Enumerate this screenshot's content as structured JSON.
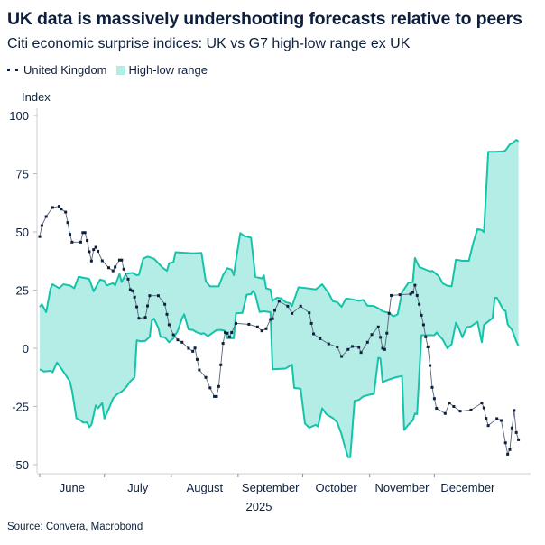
{
  "title": "UK data is massively undershooting forecasts relative to peers",
  "subtitle": "Citi economic surprise indices: UK vs G7 high-low range ex UK",
  "source": "Source: Convera, Macrobond",
  "colors": {
    "uk": "#0d1f3c",
    "range_line": "#14c4aa",
    "range_fill": "#b3ede6",
    "text": "#0d1f3c"
  },
  "chart_data": {
    "type": "line",
    "title": "UK data is massively undershooting forecasts relative to peers",
    "subtitle": "Citi economic surprise indices: UK vs G7 high-low range ex UK",
    "ylabel": "Index",
    "xlabel": "2025",
    "ylim": [
      -50,
      100
    ],
    "yticks": [
      100,
      75,
      50,
      25,
      0,
      -25,
      -50
    ],
    "xticks": [
      "June",
      "July",
      "August",
      "September",
      "October",
      "November",
      "December"
    ],
    "grid": false,
    "legend_placement": "top-left",
    "legend": [
      "United Kingdom",
      "High-low range"
    ],
    "range_high": [
      [
        "2025-06-01",
        17.8
      ],
      [
        "2025-06-02",
        18.9
      ],
      [
        "2025-06-04",
        15.5
      ],
      [
        "2025-06-06",
        25.6
      ],
      [
        "2025-06-07",
        27.5
      ],
      [
        "2025-06-10",
        25.8
      ],
      [
        "2025-06-12",
        27.5
      ],
      [
        "2025-06-15",
        27
      ],
      [
        "2025-06-17",
        25.8
      ],
      [
        "2025-06-19",
        30.7
      ],
      [
        "2025-06-23",
        30
      ],
      [
        "2025-06-24",
        29.7
      ],
      [
        "2025-06-26",
        24.5
      ],
      [
        "2025-06-29",
        29.5
      ],
      [
        "2025-07-01",
        29
      ],
      [
        "2025-07-02",
        27
      ],
      [
        "2025-07-05",
        28
      ],
      [
        "2025-07-06",
        27
      ],
      [
        "2025-07-08",
        32
      ],
      [
        "2025-07-09",
        28.4
      ],
      [
        "2025-07-11",
        32
      ],
      [
        "2025-07-14",
        32.4
      ],
      [
        "2025-07-16",
        31.4
      ],
      [
        "2025-07-17",
        31.6
      ],
      [
        "2025-07-19",
        38.5
      ],
      [
        "2025-07-21",
        39.4
      ],
      [
        "2025-07-24",
        38.5
      ],
      [
        "2025-07-28",
        34.6
      ],
      [
        "2025-07-30",
        33.3
      ],
      [
        "2025-07-31",
        36.5
      ],
      [
        "2025-08-02",
        37
      ],
      [
        "2025-08-03",
        41.3
      ],
      [
        "2025-08-11",
        40.8
      ],
      [
        "2025-08-15",
        41
      ],
      [
        "2025-08-17",
        28.8
      ],
      [
        "2025-08-19",
        26.6
      ],
      [
        "2025-08-23",
        26.6
      ],
      [
        "2025-08-25",
        31.4
      ],
      [
        "2025-08-27",
        34.4
      ],
      [
        "2025-08-29",
        33.8
      ],
      [
        "2025-08-30",
        31.4
      ],
      [
        "2025-08-31",
        37.8
      ],
      [
        "2025-09-02",
        49.5
      ],
      [
        "2025-09-04",
        48.2
      ],
      [
        "2025-09-07",
        47.5
      ],
      [
        "2025-09-09",
        30.7
      ],
      [
        "2025-09-12",
        30
      ],
      [
        "2025-09-13",
        31.3
      ],
      [
        "2025-09-14",
        25.8
      ],
      [
        "2025-09-16",
        25.2
      ],
      [
        "2025-09-17",
        20.4
      ],
      [
        "2025-09-19",
        21.7
      ],
      [
        "2025-09-21",
        21.4
      ],
      [
        "2025-09-23",
        19.8
      ],
      [
        "2025-09-25",
        19.4
      ],
      [
        "2025-09-26",
        18.1
      ],
      [
        "2025-09-29",
        26.2
      ],
      [
        "2025-10-03",
        25.8
      ],
      [
        "2025-10-07",
        25.3
      ],
      [
        "2025-10-10",
        27.5
      ],
      [
        "2025-10-13",
        23.6
      ],
      [
        "2025-10-15",
        20.2
      ],
      [
        "2025-10-17",
        19.8
      ],
      [
        "2025-10-19",
        17.8
      ],
      [
        "2025-10-21",
        21.4
      ],
      [
        "2025-10-24",
        21
      ],
      [
        "2025-10-27",
        20.4
      ],
      [
        "2025-10-29",
        20.8
      ],
      [
        "2025-10-31",
        18.3
      ],
      [
        "2025-11-03",
        18.1
      ],
      [
        "2025-11-05",
        17.2
      ],
      [
        "2025-11-07",
        15.9
      ],
      [
        "2025-11-10",
        15.2
      ],
      [
        "2025-11-12",
        13.7
      ],
      [
        "2025-11-14",
        14.6
      ],
      [
        "2025-11-16",
        24
      ],
      [
        "2025-11-19",
        28.2
      ],
      [
        "2025-11-21",
        28.4
      ],
      [
        "2025-11-22",
        38.8
      ],
      [
        "2025-11-24",
        34.9
      ],
      [
        "2025-11-26",
        34.2
      ],
      [
        "2025-11-29",
        33
      ],
      [
        "2025-11-30",
        33.3
      ],
      [
        "2025-12-02",
        31.8
      ],
      [
        "2025-12-03",
        31
      ],
      [
        "2025-12-05",
        27.8
      ],
      [
        "2025-12-07",
        26.9
      ],
      [
        "2025-12-09",
        26.6
      ],
      [
        "2025-12-11",
        38.1
      ],
      [
        "2025-12-14",
        37.6
      ],
      [
        "2025-12-17",
        37.6
      ],
      [
        "2025-12-19",
        45.2
      ],
      [
        "2025-12-21",
        51.2
      ],
      [
        "2025-12-23",
        50.8
      ],
      [
        "2025-12-24",
        49.9
      ],
      [
        "2025-12-26",
        84.4
      ],
      [
        "2025-12-29",
        84.4
      ],
      [
        "2026-01-02",
        84.6
      ],
      [
        "2026-01-03",
        85
      ],
      [
        "2026-01-05",
        87.6
      ],
      [
        "2026-01-06",
        88
      ],
      [
        "2026-01-08",
        89.5
      ],
      [
        "2026-01-09",
        88.9
      ]
    ],
    "range_low": [
      [
        "2025-06-01",
        -9
      ],
      [
        "2025-06-03",
        -10
      ],
      [
        "2025-06-06",
        -9.7
      ],
      [
        "2025-06-07",
        -10.3
      ],
      [
        "2025-06-09",
        -6.1
      ],
      [
        "2025-06-10",
        -7.4
      ],
      [
        "2025-06-12",
        -10
      ],
      [
        "2025-06-15",
        -14.2
      ],
      [
        "2025-06-16",
        -18.3
      ],
      [
        "2025-06-18",
        -30
      ],
      [
        "2025-06-20",
        -31
      ],
      [
        "2025-06-21",
        -31.9
      ],
      [
        "2025-06-23",
        -31.9
      ],
      [
        "2025-06-24",
        -33.9
      ],
      [
        "2025-06-25",
        -32.8
      ],
      [
        "2025-06-27",
        -24.5
      ],
      [
        "2025-06-28",
        -25.8
      ],
      [
        "2025-06-30",
        -23.5
      ],
      [
        "2025-07-01",
        -30.2
      ],
      [
        "2025-07-03",
        -26.1
      ],
      [
        "2025-07-05",
        -21.6
      ],
      [
        "2025-07-07",
        -19.6
      ],
      [
        "2025-07-09",
        -18.6
      ],
      [
        "2025-07-11",
        -16.8
      ],
      [
        "2025-07-13",
        -14.2
      ],
      [
        "2025-07-15",
        -12.5
      ],
      [
        "2025-07-16",
        3.4
      ],
      [
        "2025-07-18",
        3
      ],
      [
        "2025-07-20",
        3.2
      ],
      [
        "2025-07-22",
        4.9
      ],
      [
        "2025-07-23",
        12
      ],
      [
        "2025-07-24",
        12.7
      ],
      [
        "2025-07-26",
        8.8
      ],
      [
        "2025-07-27",
        4.9
      ],
      [
        "2025-07-29",
        4.7
      ],
      [
        "2025-07-31",
        2.6
      ],
      [
        "2025-08-02",
        4.3
      ],
      [
        "2025-08-04",
        7.5
      ],
      [
        "2025-08-06",
        12.9
      ],
      [
        "2025-08-07",
        14.6
      ],
      [
        "2025-08-09",
        8.1
      ],
      [
        "2025-08-11",
        7.9
      ],
      [
        "2025-08-13",
        6.8
      ],
      [
        "2025-08-15",
        6.2
      ],
      [
        "2025-08-16",
        6.5
      ],
      [
        "2025-08-18",
        5.2
      ],
      [
        "2025-08-20",
        6.5
      ],
      [
        "2025-08-22",
        7.8
      ],
      [
        "2025-08-24",
        7.9
      ],
      [
        "2025-08-26",
        7.5
      ],
      [
        "2025-08-27",
        4.3
      ],
      [
        "2025-08-30",
        4.3
      ],
      [
        "2025-08-31",
        15
      ],
      [
        "2025-09-03",
        15.2
      ],
      [
        "2025-09-05",
        23
      ],
      [
        "2025-09-07",
        23.3
      ],
      [
        "2025-09-08",
        24.7
      ],
      [
        "2025-09-09",
        23
      ],
      [
        "2025-09-11",
        15.6
      ],
      [
        "2025-09-13",
        15.9
      ],
      [
        "2025-09-16",
        15.5
      ],
      [
        "2025-09-17",
        -9
      ],
      [
        "2025-09-23",
        -8.7
      ],
      [
        "2025-09-26",
        -7
      ],
      [
        "2025-09-27",
        -17
      ],
      [
        "2025-09-30",
        -17.4
      ],
      [
        "2025-10-02",
        -32.3
      ],
      [
        "2025-10-04",
        -34.1
      ],
      [
        "2025-10-07",
        -32.9
      ],
      [
        "2025-10-08",
        -33.6
      ],
      [
        "2025-10-10",
        -25.8
      ],
      [
        "2025-10-12",
        -28.4
      ],
      [
        "2025-10-15",
        -30
      ],
      [
        "2025-10-17",
        -31.9
      ],
      [
        "2025-10-19",
        -37
      ],
      [
        "2025-10-20",
        -40.6
      ],
      [
        "2025-10-22",
        -46.8
      ],
      [
        "2025-10-23",
        -46.8
      ],
      [
        "2025-10-25",
        -22.5
      ],
      [
        "2025-10-27",
        -22.2
      ],
      [
        "2025-10-29",
        -20.7
      ],
      [
        "2025-11-01",
        -19.9
      ],
      [
        "2025-11-03",
        -19.6
      ],
      [
        "2025-11-05",
        -4.1
      ],
      [
        "2025-11-06",
        -4.4
      ],
      [
        "2025-11-07",
        -14.5
      ],
      [
        "2025-11-10",
        -13.4
      ],
      [
        "2025-11-13",
        -12.5
      ],
      [
        "2025-11-16",
        -11.9
      ],
      [
        "2025-11-17",
        -35.1
      ],
      [
        "2025-11-19",
        -32.8
      ],
      [
        "2025-11-21",
        -31
      ],
      [
        "2025-11-22",
        -28
      ],
      [
        "2025-11-23",
        -28.3
      ],
      [
        "2025-11-25",
        5.6
      ],
      [
        "2025-11-28",
        5.6
      ],
      [
        "2025-12-01",
        5.6
      ],
      [
        "2025-12-02",
        6.8
      ],
      [
        "2025-12-05",
        3.6
      ],
      [
        "2025-12-07",
        0
      ],
      [
        "2025-12-09",
        1.7
      ],
      [
        "2025-12-11",
        11
      ],
      [
        "2025-12-12",
        9.4
      ],
      [
        "2025-12-14",
        4.7
      ],
      [
        "2025-12-16",
        9
      ],
      [
        "2025-12-18",
        9.4
      ],
      [
        "2025-12-21",
        11.4
      ],
      [
        "2025-12-23",
        2.6
      ],
      [
        "2025-12-24",
        10
      ],
      [
        "2025-12-28",
        13
      ],
      [
        "2025-12-29",
        21.7
      ],
      [
        "2025-12-30",
        21.7
      ],
      [
        "2026-01-02",
        16.5
      ],
      [
        "2026-01-03",
        16.1
      ],
      [
        "2026-01-04",
        10.3
      ],
      [
        "2026-01-06",
        7.9
      ],
      [
        "2026-01-08",
        3
      ],
      [
        "2026-01-09",
        1
      ]
    ],
    "uk": [
      [
        "2025-06-01",
        48
      ],
      [
        "2025-06-02",
        52.7
      ],
      [
        "2025-06-04",
        56.6
      ],
      [
        "2025-06-07",
        60.5
      ],
      [
        "2025-06-10",
        61
      ],
      [
        "2025-06-11",
        59.8
      ],
      [
        "2025-06-13",
        58.5
      ],
      [
        "2025-06-14",
        54
      ],
      [
        "2025-06-15",
        49
      ],
      [
        "2025-06-16",
        45.6
      ],
      [
        "2025-06-20",
        45.6
      ],
      [
        "2025-06-21",
        49.7
      ],
      [
        "2025-06-22",
        49.7
      ],
      [
        "2025-06-23",
        46.3
      ],
      [
        "2025-06-24",
        41.5
      ],
      [
        "2025-06-25",
        37.5
      ],
      [
        "2025-06-26",
        42.4
      ],
      [
        "2025-06-27",
        43.4
      ],
      [
        "2025-06-28",
        41.7
      ],
      [
        "2025-06-30",
        37.6
      ],
      [
        "2025-07-03",
        34.6
      ],
      [
        "2025-07-05",
        33.3
      ],
      [
        "2025-07-06",
        34.9
      ],
      [
        "2025-07-08",
        37.9
      ],
      [
        "2025-07-09",
        37.9
      ],
      [
        "2025-07-10",
        34
      ],
      [
        "2025-07-12",
        29.7
      ],
      [
        "2025-07-13",
        25.2
      ],
      [
        "2025-07-14",
        24.7
      ],
      [
        "2025-07-15",
        22
      ],
      [
        "2025-07-16",
        17.8
      ],
      [
        "2025-07-17",
        12.9
      ],
      [
        "2025-07-20",
        13.3
      ],
      [
        "2025-07-21",
        18.2
      ],
      [
        "2025-07-22",
        22.6
      ],
      [
        "2025-07-26",
        22.6
      ],
      [
        "2025-07-29",
        18.9
      ],
      [
        "2025-07-30",
        14.6
      ],
      [
        "2025-07-31",
        10.1
      ],
      [
        "2025-08-02",
        5.8
      ],
      [
        "2025-08-04",
        3.6
      ],
      [
        "2025-08-06",
        2.6
      ],
      [
        "2025-08-09",
        0
      ],
      [
        "2025-08-11",
        -1.3
      ],
      [
        "2025-08-12",
        0.1
      ],
      [
        "2025-08-13",
        -4.8
      ],
      [
        "2025-08-14",
        -9.3
      ],
      [
        "2025-08-17",
        -12.5
      ],
      [
        "2025-08-19",
        -17
      ],
      [
        "2025-08-21",
        -20.7
      ],
      [
        "2025-08-22",
        -20.7
      ],
      [
        "2025-08-23",
        -16.4
      ],
      [
        "2025-08-24",
        -7.1
      ],
      [
        "2025-08-25",
        2.1
      ],
      [
        "2025-08-26",
        6.8
      ],
      [
        "2025-08-27",
        6.5
      ],
      [
        "2025-08-28",
        4.9
      ],
      [
        "2025-08-29",
        6.8
      ],
      [
        "2025-08-31",
        10.7
      ],
      [
        "2025-09-06",
        10.3
      ],
      [
        "2025-09-10",
        9.2
      ],
      [
        "2025-09-12",
        7.5
      ],
      [
        "2025-09-14",
        8.4
      ],
      [
        "2025-09-16",
        12.4
      ],
      [
        "2025-09-17",
        12.7
      ],
      [
        "2025-09-18",
        16.3
      ],
      [
        "2025-09-20",
        20.2
      ],
      [
        "2025-09-24",
        18.1
      ],
      [
        "2025-09-26",
        15
      ],
      [
        "2025-09-30",
        18.1
      ],
      [
        "2025-10-04",
        15.2
      ],
      [
        "2025-10-05",
        10.7
      ],
      [
        "2025-10-06",
        6.2
      ],
      [
        "2025-10-09",
        4.1
      ],
      [
        "2025-10-13",
        1.9
      ],
      [
        "2025-10-17",
        0.6
      ],
      [
        "2025-10-19",
        -3.5
      ],
      [
        "2025-10-22",
        -0.5
      ],
      [
        "2025-10-24",
        0.8
      ],
      [
        "2025-10-27",
        0.4
      ],
      [
        "2025-10-28",
        -1.8
      ],
      [
        "2025-10-31",
        2.6
      ],
      [
        "2025-11-02",
        5.9
      ],
      [
        "2025-11-05",
        9.2
      ],
      [
        "2025-11-06",
        4.7
      ],
      [
        "2025-11-07",
        0
      ],
      [
        "2025-11-08",
        -0.5
      ],
      [
        "2025-11-09",
        6.5
      ],
      [
        "2025-11-10",
        15
      ],
      [
        "2025-11-11",
        22.7
      ],
      [
        "2025-11-15",
        23
      ],
      [
        "2025-11-20",
        23.3
      ],
      [
        "2025-11-21",
        24
      ],
      [
        "2025-11-22",
        27.1
      ],
      [
        "2025-11-23",
        22.7
      ],
      [
        "2025-11-24",
        18.9
      ],
      [
        "2025-11-25",
        14.2
      ],
      [
        "2025-11-26",
        10.1
      ],
      [
        "2025-11-27",
        4.9
      ],
      [
        "2025-11-28",
        0.6
      ],
      [
        "2025-11-29",
        -7.4
      ],
      [
        "2025-11-30",
        -16.8
      ],
      [
        "2025-12-01",
        -21.6
      ],
      [
        "2025-12-02",
        -25.8
      ],
      [
        "2025-12-06",
        -28
      ],
      [
        "2025-12-08",
        -23.5
      ],
      [
        "2025-12-10",
        -25
      ],
      [
        "2025-12-13",
        -27
      ],
      [
        "2025-12-18",
        -26.5
      ],
      [
        "2025-12-23",
        -23.5
      ],
      [
        "2025-12-24",
        -25.6
      ],
      [
        "2025-12-25",
        -30.1
      ],
      [
        "2025-12-26",
        -33.2
      ],
      [
        "2025-12-30",
        -30.2
      ],
      [
        "2026-01-01",
        -31
      ],
      [
        "2026-01-03",
        -40.6
      ],
      [
        "2026-01-04",
        -45.5
      ],
      [
        "2026-01-05",
        -43.5
      ],
      [
        "2026-01-06",
        -34.2
      ],
      [
        "2026-01-07",
        -26.7
      ],
      [
        "2026-01-08",
        -36.2
      ],
      [
        "2026-01-09",
        -39.3
      ]
    ]
  }
}
